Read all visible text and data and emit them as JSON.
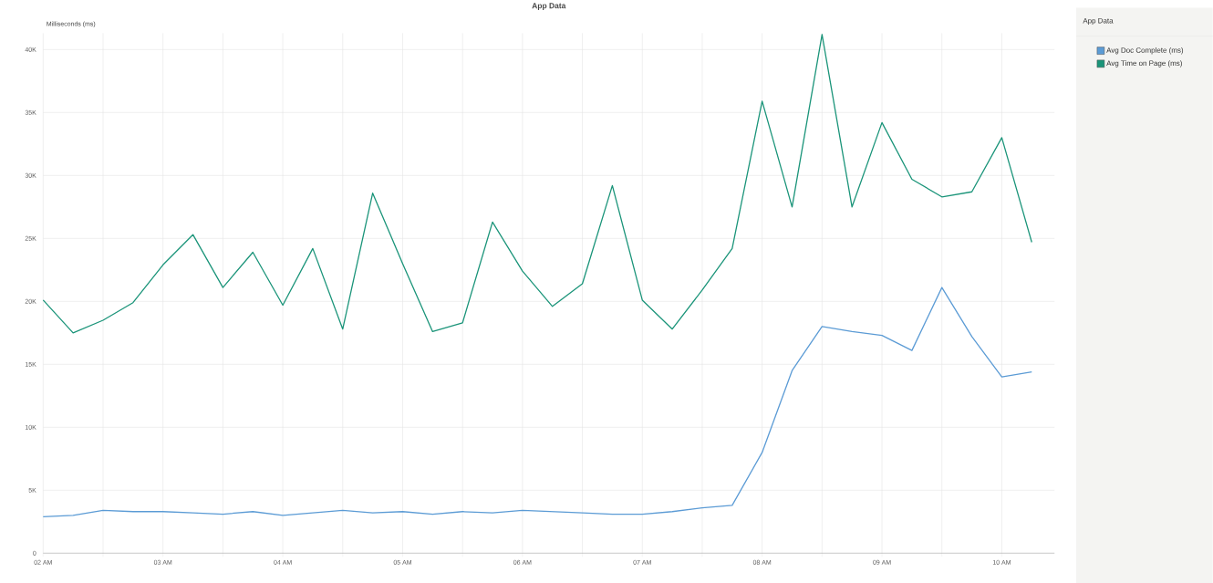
{
  "chart_data": {
    "type": "line",
    "title": "App Data",
    "ylabel": "Milliseconds (ms)",
    "legend_title": "App Data",
    "x": [
      2,
      2.25,
      2.5,
      2.75,
      3,
      3.25,
      3.5,
      3.75,
      4,
      4.25,
      4.5,
      4.75,
      5,
      5.25,
      5.5,
      5.75,
      6,
      6.25,
      6.5,
      6.75,
      7,
      7.25,
      7.5,
      7.75,
      8,
      8.25,
      8.5,
      8.75,
      9,
      9.25,
      9.5,
      9.75,
      10,
      10.25
    ],
    "series": [
      {
        "name": "Avg Doc Complete (ms)",
        "color": "#5b9bd5",
        "values": [
          2900,
          3000,
          3400,
          3300,
          3300,
          3200,
          3100,
          3300,
          3000,
          3200,
          3400,
          3200,
          3300,
          3100,
          3300,
          3200,
          3400,
          3300,
          3200,
          3100,
          3100,
          3300,
          3600,
          3800,
          8000,
          14500,
          18000,
          17600,
          17300,
          16100,
          21100,
          17200,
          14000,
          14400
        ]
      },
      {
        "name": "Avg Time on Page (ms)",
        "color": "#1a9479",
        "values": [
          20100,
          17500,
          18500,
          19900,
          22900,
          25300,
          21100,
          23900,
          19700,
          24200,
          17800,
          28600,
          23000,
          17600,
          18300,
          26300,
          22400,
          19600,
          21400,
          29200,
          20100,
          17800,
          20900,
          24200,
          35900,
          27500,
          41200,
          27500,
          34200,
          29700,
          28300,
          28700,
          33000,
          24700
        ]
      }
    ],
    "xlim": [
      2,
      10.44
    ],
    "ylim": [
      0,
      41300
    ],
    "xticks": [
      {
        "value": 2,
        "label": "02 AM"
      },
      {
        "value": 2.5,
        "label": null
      },
      {
        "value": 3,
        "label": "03 AM"
      },
      {
        "value": 3.5,
        "label": null
      },
      {
        "value": 4,
        "label": "04 AM"
      },
      {
        "value": 4.5,
        "label": null
      },
      {
        "value": 5,
        "label": "05 AM"
      },
      {
        "value": 5.5,
        "label": null
      },
      {
        "value": 6,
        "label": "06 AM"
      },
      {
        "value": 6.5,
        "label": null
      },
      {
        "value": 7,
        "label": "07 AM"
      },
      {
        "value": 7.5,
        "label": null
      },
      {
        "value": 8,
        "label": "08 AM"
      },
      {
        "value": 8.5,
        "label": null
      },
      {
        "value": 9,
        "label": "09 AM"
      },
      {
        "value": 9.5,
        "label": null
      },
      {
        "value": 10,
        "label": "10 AM"
      }
    ],
    "yticks": [
      0,
      {
        "value": 5000,
        "label": "5K"
      },
      {
        "value": 10000,
        "label": "10K"
      },
      {
        "value": 15000,
        "label": "15K"
      },
      {
        "value": 20000,
        "label": "20K"
      },
      {
        "value": 25000,
        "label": "25K"
      },
      {
        "value": 30000,
        "label": "30K"
      },
      {
        "value": 35000,
        "label": "35K"
      },
      {
        "value": 40000,
        "label": "40K"
      }
    ],
    "grid": true,
    "legend": "right",
    "marker": "none",
    "line_style": "solid"
  }
}
